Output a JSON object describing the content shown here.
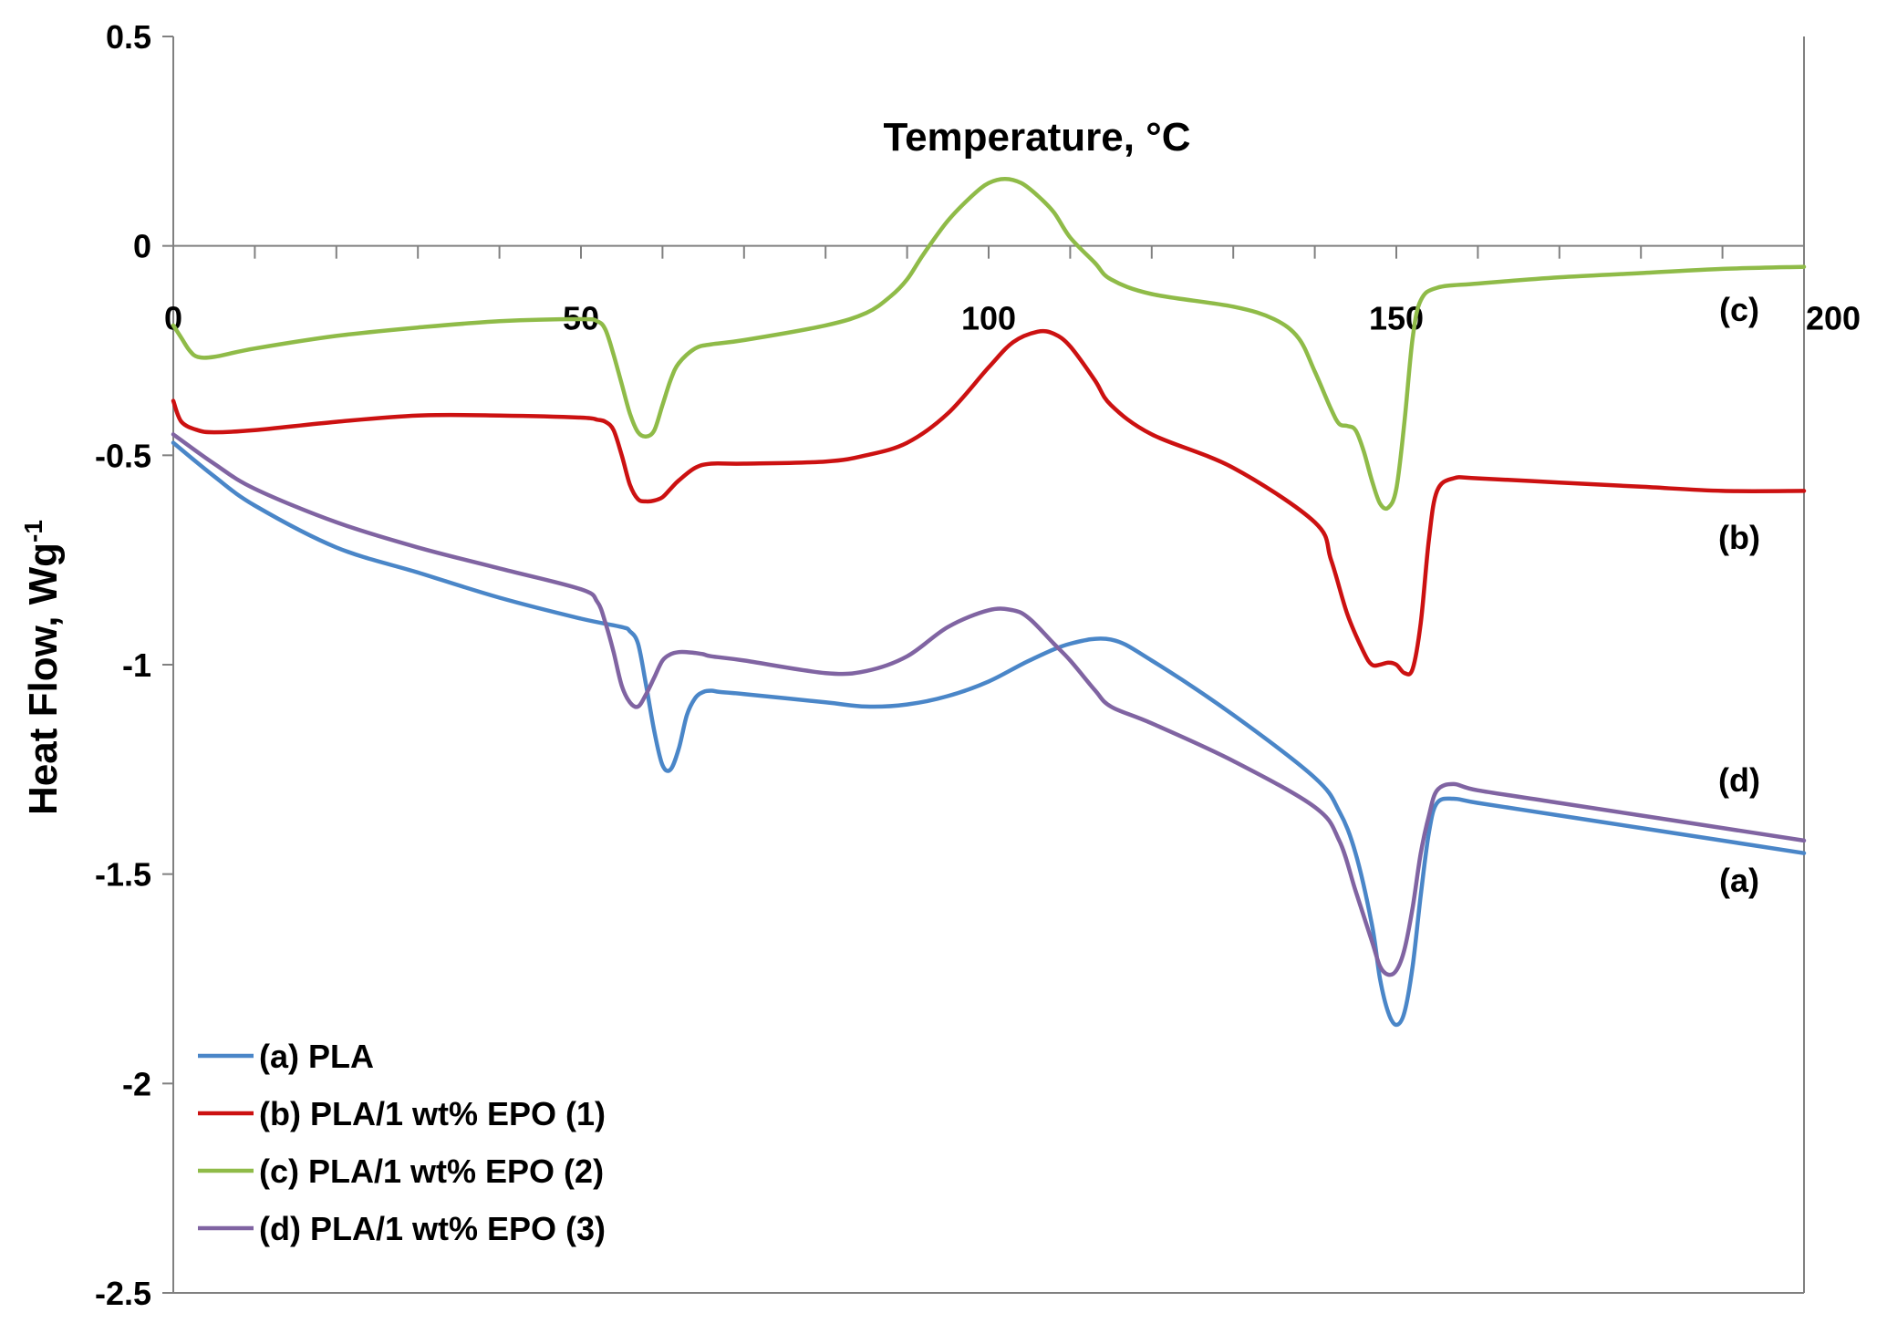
{
  "chart_data": {
    "type": "line",
    "title": "",
    "xlabel": "Temperature, °C",
    "ylabel": "Heat Flow, Wg",
    "ylabel_superscript": "-1",
    "xlim": [
      0,
      200
    ],
    "ylim": [
      -2.5,
      0.5
    ],
    "xticks": [
      0,
      50,
      100,
      150,
      200
    ],
    "xtick_labels": [
      "0",
      "50",
      "100",
      "150",
      "200"
    ],
    "yticks": [
      0.5,
      0,
      -0.5,
      -1,
      -1.5,
      -2,
      -2.5
    ],
    "ytick_labels": [
      "0.5",
      "0",
      "-0.5",
      "-1",
      "-1.5",
      "-2",
      "-2.5"
    ],
    "grid": false,
    "legend_position": "bottom-left",
    "series": [
      {
        "name": "(a) PLA",
        "tag": "(a)",
        "color": "#4a86c8",
        "x": [
          0,
          5,
          10,
          20,
          30,
          40,
          50,
          55,
          56,
          57,
          58,
          59,
          60,
          61,
          62,
          63,
          64,
          65,
          66,
          67,
          70,
          80,
          85,
          90,
          95,
          100,
          105,
          110,
          115,
          120,
          130,
          140,
          143,
          145,
          147,
          148,
          149,
          150,
          151,
          152,
          153,
          154,
          155,
          157,
          160,
          170,
          180,
          190,
          200
        ],
        "y": [
          -0.47,
          -0.55,
          -0.62,
          -0.72,
          -0.78,
          -0.84,
          -0.89,
          -0.91,
          -0.92,
          -0.95,
          -1.05,
          -1.16,
          -1.24,
          -1.25,
          -1.2,
          -1.12,
          -1.08,
          -1.065,
          -1.062,
          -1.065,
          -1.07,
          -1.09,
          -1.1,
          -1.095,
          -1.075,
          -1.04,
          -0.99,
          -0.95,
          -0.94,
          -0.99,
          -1.12,
          -1.27,
          -1.35,
          -1.45,
          -1.62,
          -1.75,
          -1.83,
          -1.86,
          -1.83,
          -1.72,
          -1.55,
          -1.4,
          -1.33,
          -1.32,
          -1.33,
          -1.36,
          -1.39,
          -1.42,
          -1.45
        ]
      },
      {
        "name": "(b) PLA/1 wt% EPO (1)",
        "tag": "(b)",
        "color": "#cc1111",
        "x": [
          0,
          1,
          3,
          5,
          10,
          20,
          30,
          40,
          50,
          52,
          53,
          54,
          55,
          56,
          57,
          58,
          59,
          60,
          61,
          62,
          64,
          66,
          70,
          80,
          85,
          90,
          95,
          100,
          103,
          106,
          108,
          110,
          113,
          115,
          120,
          130,
          140,
          142,
          144,
          146,
          147,
          148,
          149,
          150,
          151,
          152,
          153,
          154,
          155,
          157,
          160,
          170,
          180,
          190,
          200
        ],
        "y": [
          -0.37,
          -0.42,
          -0.44,
          -0.445,
          -0.44,
          -0.42,
          -0.405,
          -0.405,
          -0.41,
          -0.415,
          -0.42,
          -0.44,
          -0.5,
          -0.57,
          -0.605,
          -0.61,
          -0.608,
          -0.6,
          -0.58,
          -0.56,
          -0.53,
          -0.52,
          -0.52,
          -0.515,
          -0.5,
          -0.47,
          -0.4,
          -0.29,
          -0.23,
          -0.205,
          -0.21,
          -0.24,
          -0.32,
          -0.38,
          -0.45,
          -0.53,
          -0.66,
          -0.75,
          -0.88,
          -0.97,
          -1.0,
          -1.0,
          -0.995,
          -1.0,
          -1.02,
          -1.01,
          -0.9,
          -0.7,
          -0.585,
          -0.555,
          -0.555,
          -0.565,
          -0.575,
          -0.585,
          -0.585
        ]
      },
      {
        "name": "(c) PLA/1 wt% EPO (2)",
        "tag": "(c)",
        "color": "#8fbb48",
        "x": [
          0,
          1,
          2,
          3,
          5,
          10,
          20,
          30,
          40,
          50,
          52,
          53,
          54,
          55,
          56,
          57,
          58,
          59,
          60,
          61,
          62,
          64,
          66,
          70,
          80,
          85,
          88,
          90,
          92,
          95,
          98,
          100,
          102,
          104,
          106,
          108,
          110,
          113,
          115,
          120,
          130,
          135,
          138,
          140,
          142,
          143,
          144,
          145,
          146,
          147,
          148,
          149,
          150,
          151,
          152,
          153,
          155,
          160,
          170,
          180,
          190,
          200
        ],
        "y": [
          -0.19,
          -0.22,
          -0.25,
          -0.265,
          -0.265,
          -0.245,
          -0.215,
          -0.195,
          -0.18,
          -0.175,
          -0.18,
          -0.2,
          -0.26,
          -0.33,
          -0.4,
          -0.445,
          -0.455,
          -0.44,
          -0.38,
          -0.32,
          -0.28,
          -0.245,
          -0.235,
          -0.225,
          -0.19,
          -0.16,
          -0.12,
          -0.08,
          -0.02,
          0.06,
          0.12,
          0.15,
          0.16,
          0.15,
          0.12,
          0.08,
          0.02,
          -0.04,
          -0.08,
          -0.115,
          -0.145,
          -0.175,
          -0.22,
          -0.3,
          -0.39,
          -0.425,
          -0.43,
          -0.44,
          -0.49,
          -0.56,
          -0.615,
          -0.625,
          -0.58,
          -0.42,
          -0.22,
          -0.13,
          -0.1,
          -0.09,
          -0.075,
          -0.065,
          -0.055,
          -0.05
        ]
      },
      {
        "name": "(d) PLA/1 wt% EPO (3)",
        "tag": "(d)",
        "color": "#8064a2",
        "x": [
          0,
          5,
          10,
          20,
          30,
          40,
          50,
          52,
          53,
          54,
          55,
          56,
          57,
          58,
          59,
          60,
          61,
          62,
          63,
          64,
          65,
          66,
          70,
          80,
          85,
          90,
          95,
          100,
          103,
          105,
          108,
          110,
          113,
          115,
          120,
          130,
          140,
          143,
          145,
          147,
          148,
          149,
          150,
          151,
          152,
          153,
          154,
          155,
          157,
          160,
          170,
          180,
          190,
          200
        ],
        "y": [
          -0.45,
          -0.52,
          -0.58,
          -0.66,
          -0.72,
          -0.77,
          -0.82,
          -0.85,
          -0.9,
          -0.97,
          -1.05,
          -1.09,
          -1.1,
          -1.07,
          -1.03,
          -0.99,
          -0.975,
          -0.97,
          -0.97,
          -0.972,
          -0.975,
          -0.98,
          -0.99,
          -1.02,
          -1.015,
          -0.98,
          -0.91,
          -0.87,
          -0.87,
          -0.89,
          -0.95,
          -0.99,
          -1.06,
          -1.1,
          -1.14,
          -1.23,
          -1.34,
          -1.42,
          -1.54,
          -1.66,
          -1.72,
          -1.74,
          -1.73,
          -1.68,
          -1.58,
          -1.45,
          -1.36,
          -1.3,
          -1.285,
          -1.3,
          -1.33,
          -1.36,
          -1.39,
          -1.42
        ]
      }
    ]
  }
}
